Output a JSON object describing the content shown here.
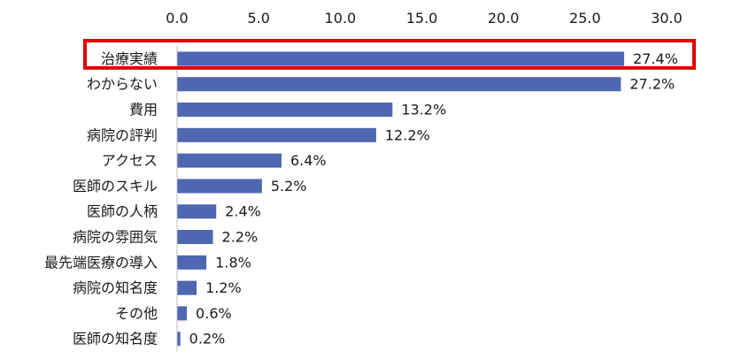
{
  "chart_data": {
    "type": "bar",
    "orientation": "horizontal",
    "xlim": [
      0,
      30
    ],
    "x_ticks": [
      "0.0",
      "5.0",
      "10.0",
      "15.0",
      "20.0",
      "25.0",
      "30.0"
    ],
    "axis_position": "top",
    "grid": false,
    "categories": [
      "治療実績",
      "わからない",
      "費用",
      "病院の評判",
      "アクセス",
      "医師のスキル",
      "医師の人柄",
      "病院の雰囲気",
      "最先端医療の導入",
      "病院の知名度",
      "その他",
      "医師の知名度"
    ],
    "values": [
      27.4,
      27.2,
      13.2,
      12.2,
      6.4,
      5.2,
      2.4,
      2.2,
      1.8,
      1.2,
      0.6,
      0.2
    ],
    "data_labels": [
      "27.4%",
      "27.2%",
      "13.2%",
      "12.2%",
      "6.4%",
      "5.2%",
      "2.4%",
      "2.2%",
      "1.8%",
      "1.2%",
      "0.6%",
      "0.2%"
    ],
    "highlighted_category": "治療実績",
    "bar_color": "#4f67b0",
    "highlight_color": "#e00000"
  }
}
